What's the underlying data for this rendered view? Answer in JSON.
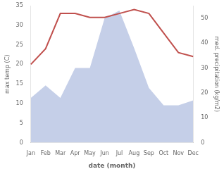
{
  "chart_data": {
    "type": "line",
    "categories": [
      "Jan",
      "Feb",
      "Mar",
      "Apr",
      "May",
      "Jun",
      "Jul",
      "Aug",
      "Sep",
      "Oct",
      "Nov",
      "Dec"
    ],
    "series": [
      {
        "type": "area",
        "axis": "y2",
        "color": "#c5cfe8",
        "values": [
          18,
          23,
          18,
          30,
          30,
          50,
          53,
          38,
          22,
          15,
          15,
          17
        ]
      },
      {
        "type": "line",
        "color": "#c0504d",
        "values": [
          20,
          24,
          33,
          33,
          32,
          32,
          33,
          34,
          33,
          28,
          23,
          22
        ]
      }
    ],
    "xlabel": "date (month)",
    "ylabel": "max temp (C)",
    "y2label": "med. precipitation (kg/m2)",
    "ylim": [
      0,
      35
    ],
    "yticks": [
      0,
      5,
      10,
      15,
      20,
      25,
      30,
      35
    ],
    "y2lim": [
      0,
      55
    ],
    "y2ticks": [
      0,
      10,
      20,
      30,
      40,
      50
    ],
    "grid": false
  }
}
